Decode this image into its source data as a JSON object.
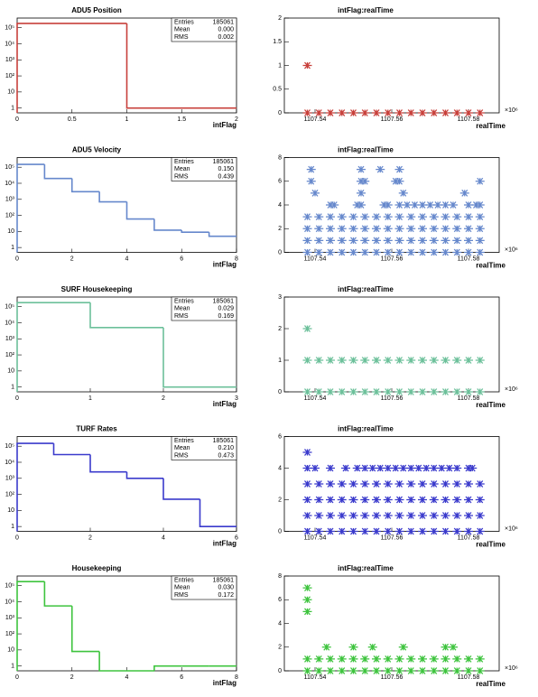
{
  "chart_data": [
    {
      "type": "histogram",
      "title": "ADU5 Position",
      "xlabel": "intFlag",
      "color": "#c8403b",
      "log_y": true,
      "bins": [
        0,
        1,
        2
      ],
      "counts": [
        185060,
        1
      ],
      "xlim": [
        0,
        2
      ],
      "xticks": [
        0,
        0.5,
        1,
        1.5,
        2
      ],
      "ylim": [
        0.5,
        400000
      ],
      "yticks": [
        1,
        10,
        {
          "value": 100,
          "label": "10²"
        },
        {
          "value": 1000,
          "label": "10³"
        },
        {
          "value": 10000,
          "label": "10⁴"
        },
        {
          "value": 100000,
          "label": "10⁵"
        }
      ],
      "stats": [
        {
          "label": "Entries",
          "value": "185061"
        },
        {
          "label": "Mean",
          "value": "0.000"
        },
        {
          "label": "RMS",
          "value": "0.002"
        }
      ]
    },
    {
      "type": "scatter",
      "title": "intFlag:realTime",
      "xlabel": "realTime",
      "color": "#c8403b",
      "xlim": [
        1107.532,
        1107.588
      ],
      "xticks": [
        {
          "value": 1107.54,
          "label": "1107.54"
        },
        {
          "value": 1107.56,
          "label": "1107.56"
        },
        {
          "value": 1107.58,
          "label": "1107.58"
        }
      ],
      "x_exponent": "×10⁶",
      "ylim": [
        0,
        2
      ],
      "yticks": [
        0,
        0.5,
        1,
        1.5,
        2
      ],
      "rows": [
        {
          "y": 0,
          "x": [
            1107.538,
            1107.541,
            1107.544,
            1107.547,
            1107.55,
            1107.553,
            1107.556,
            1107.559,
            1107.562,
            1107.565,
            1107.568,
            1107.571,
            1107.574,
            1107.577,
            1107.58,
            1107.583
          ]
        },
        {
          "y": 1,
          "x": [
            1107.538
          ]
        }
      ]
    },
    {
      "type": "histogram",
      "title": "ADU5 Velocity",
      "xlabel": "intFlag",
      "color": "#6688cc",
      "log_y": true,
      "bins": [
        0,
        1,
        2,
        3,
        4,
        5,
        6,
        7,
        8
      ],
      "counts": [
        150000,
        20000,
        3000,
        700,
        60,
        12,
        9,
        5
      ],
      "xlim": [
        0,
        8
      ],
      "xticks": [
        0,
        2,
        4,
        6,
        8
      ],
      "ylim": [
        0.5,
        400000
      ],
      "yticks": [
        1,
        10,
        {
          "value": 100,
          "label": "10²"
        },
        {
          "value": 1000,
          "label": "10³"
        },
        {
          "value": 10000,
          "label": "10⁴"
        },
        {
          "value": 100000,
          "label": "10⁵"
        }
      ],
      "stats": [
        {
          "label": "Entries",
          "value": "185061"
        },
        {
          "label": "Mean",
          "value": "0.150"
        },
        {
          "label": "RMS",
          "value": "0.439"
        }
      ]
    },
    {
      "type": "scatter",
      "title": "intFlag:realTime",
      "xlabel": "realTime",
      "color": "#6688cc",
      "xlim": [
        1107.532,
        1107.588
      ],
      "xticks": [
        {
          "value": 1107.54,
          "label": "1107.54"
        },
        {
          "value": 1107.56,
          "label": "1107.56"
        },
        {
          "value": 1107.58,
          "label": "1107.58"
        }
      ],
      "x_exponent": "×10⁶",
      "ylim": [
        0,
        8
      ],
      "yticks": [
        0,
        2,
        4,
        6,
        8
      ],
      "rows": [
        {
          "y": 0,
          "x": [
            1107.538,
            1107.541,
            1107.544,
            1107.547,
            1107.55,
            1107.553,
            1107.556,
            1107.559,
            1107.562,
            1107.565,
            1107.568,
            1107.571,
            1107.574,
            1107.577,
            1107.58,
            1107.583
          ]
        },
        {
          "y": 1,
          "x": [
            1107.538,
            1107.541,
            1107.544,
            1107.547,
            1107.55,
            1107.553,
            1107.556,
            1107.559,
            1107.562,
            1107.565,
            1107.568,
            1107.571,
            1107.574,
            1107.577,
            1107.58,
            1107.583
          ]
        },
        {
          "y": 2,
          "x": [
            1107.538,
            1107.541,
            1107.544,
            1107.547,
            1107.55,
            1107.553,
            1107.556,
            1107.559,
            1107.562,
            1107.565,
            1107.568,
            1107.571,
            1107.574,
            1107.577,
            1107.58,
            1107.583
          ]
        },
        {
          "y": 3,
          "x": [
            1107.538,
            1107.541,
            1107.544,
            1107.547,
            1107.55,
            1107.553,
            1107.556,
            1107.559,
            1107.562,
            1107.565,
            1107.568,
            1107.571,
            1107.574,
            1107.577,
            1107.58,
            1107.583
          ]
        },
        {
          "y": 4,
          "x": [
            1107.544,
            1107.545,
            1107.551,
            1107.552,
            1107.558,
            1107.559,
            1107.562,
            1107.564,
            1107.566,
            1107.568,
            1107.57,
            1107.572,
            1107.574,
            1107.576,
            1107.58,
            1107.582,
            1107.583
          ]
        },
        {
          "y": 5,
          "x": [
            1107.54,
            1107.552,
            1107.563,
            1107.579
          ]
        },
        {
          "y": 6,
          "x": [
            1107.539,
            1107.552,
            1107.553,
            1107.561,
            1107.562,
            1107.583
          ]
        },
        {
          "y": 7,
          "x": [
            1107.539,
            1107.552,
            1107.557,
            1107.562
          ]
        }
      ]
    },
    {
      "type": "histogram",
      "title": "SURF Housekeeping",
      "xlabel": "intFlag",
      "color": "#6cc09a",
      "log_y": true,
      "bins": [
        0,
        1,
        2,
        3
      ],
      "counts": [
        180000,
        5000,
        1
      ],
      "xlim": [
        0,
        3
      ],
      "xticks": [
        0,
        1,
        2,
        3
      ],
      "ylim": [
        0.5,
        400000
      ],
      "yticks": [
        1,
        10,
        {
          "value": 100,
          "label": "10²"
        },
        {
          "value": 1000,
          "label": "10³"
        },
        {
          "value": 10000,
          "label": "10⁴"
        },
        {
          "value": 100000,
          "label": "10⁵"
        }
      ],
      "stats": [
        {
          "label": "Entries",
          "value": "185061"
        },
        {
          "label": "Mean",
          "value": "0.029"
        },
        {
          "label": "RMS",
          "value": "0.169"
        }
      ]
    },
    {
      "type": "scatter",
      "title": "intFlag:realTime",
      "xlabel": "realTime",
      "color": "#6cc09a",
      "xlim": [
        1107.532,
        1107.588
      ],
      "xticks": [
        {
          "value": 1107.54,
          "label": "1107.54"
        },
        {
          "value": 1107.56,
          "label": "1107.56"
        },
        {
          "value": 1107.58,
          "label": "1107.58"
        }
      ],
      "x_exponent": "×10⁶",
      "ylim": [
        0,
        3
      ],
      "yticks": [
        0,
        1,
        2,
        3
      ],
      "rows": [
        {
          "y": 0,
          "x": [
            1107.538,
            1107.541,
            1107.544,
            1107.547,
            1107.55,
            1107.553,
            1107.556,
            1107.559,
            1107.562,
            1107.565,
            1107.568,
            1107.571,
            1107.574,
            1107.577,
            1107.58,
            1107.583
          ]
        },
        {
          "y": 1,
          "x": [
            1107.538,
            1107.541,
            1107.544,
            1107.547,
            1107.55,
            1107.553,
            1107.556,
            1107.559,
            1107.562,
            1107.565,
            1107.568,
            1107.571,
            1107.574,
            1107.577,
            1107.58,
            1107.583
          ]
        },
        {
          "y": 2,
          "x": [
            1107.538
          ]
        }
      ]
    },
    {
      "type": "histogram",
      "title": "TURF Rates",
      "xlabel": "intFlag",
      "color": "#3a3acc",
      "log_y": true,
      "bins": [
        0,
        1,
        2,
        3,
        4,
        5,
        6
      ],
      "counts": [
        150000,
        30000,
        2500,
        1000,
        50,
        1
      ],
      "xlim": [
        0,
        6
      ],
      "xticks": [
        0,
        2,
        4,
        6
      ],
      "ylim": [
        0.5,
        400000
      ],
      "yticks": [
        1,
        10,
        {
          "value": 100,
          "label": "10²"
        },
        {
          "value": 1000,
          "label": "10³"
        },
        {
          "value": 10000,
          "label": "10⁴"
        },
        {
          "value": 100000,
          "label": "10⁵"
        }
      ],
      "stats": [
        {
          "label": "Entries",
          "value": "185061"
        },
        {
          "label": "Mean",
          "value": "0.210"
        },
        {
          "label": "RMS",
          "value": "0.473"
        }
      ]
    },
    {
      "type": "scatter",
      "title": "intFlag:realTime",
      "xlabel": "realTime",
      "color": "#3a3acc",
      "xlim": [
        1107.532,
        1107.588
      ],
      "xticks": [
        {
          "value": 1107.54,
          "label": "1107.54"
        },
        {
          "value": 1107.56,
          "label": "1107.56"
        },
        {
          "value": 1107.58,
          "label": "1107.58"
        }
      ],
      "x_exponent": "×10⁶",
      "ylim": [
        0,
        6
      ],
      "yticks": [
        0,
        2,
        4,
        6
      ],
      "rows": [
        {
          "y": 0,
          "x": [
            1107.538,
            1107.541,
            1107.544,
            1107.547,
            1107.55,
            1107.553,
            1107.556,
            1107.559,
            1107.562,
            1107.565,
            1107.568,
            1107.571,
            1107.574,
            1107.577,
            1107.58,
            1107.583
          ]
        },
        {
          "y": 1,
          "x": [
            1107.538,
            1107.541,
            1107.544,
            1107.547,
            1107.55,
            1107.553,
            1107.556,
            1107.559,
            1107.562,
            1107.565,
            1107.568,
            1107.571,
            1107.574,
            1107.577,
            1107.58,
            1107.583
          ]
        },
        {
          "y": 2,
          "x": [
            1107.538,
            1107.541,
            1107.544,
            1107.547,
            1107.55,
            1107.553,
            1107.556,
            1107.559,
            1107.562,
            1107.565,
            1107.568,
            1107.571,
            1107.574,
            1107.577,
            1107.58,
            1107.583
          ]
        },
        {
          "y": 3,
          "x": [
            1107.538,
            1107.541,
            1107.544,
            1107.547,
            1107.55,
            1107.553,
            1107.556,
            1107.559,
            1107.562,
            1107.565,
            1107.568,
            1107.571,
            1107.574,
            1107.577,
            1107.58,
            1107.583
          ]
        },
        {
          "y": 4,
          "x": [
            1107.538,
            1107.54,
            1107.544,
            1107.548,
            1107.551,
            1107.553,
            1107.555,
            1107.557,
            1107.559,
            1107.561,
            1107.563,
            1107.565,
            1107.567,
            1107.569,
            1107.571,
            1107.573,
            1107.575,
            1107.577,
            1107.58,
            1107.581
          ]
        },
        {
          "y": 5,
          "x": [
            1107.538
          ]
        }
      ]
    },
    {
      "type": "histogram",
      "title": "Housekeeping",
      "xlabel": "intFlag",
      "color": "#3ec43e",
      "log_y": true,
      "bins": [
        0,
        1,
        2,
        3,
        4,
        5,
        6,
        7,
        8
      ],
      "counts": [
        180000,
        5500,
        8,
        0,
        0,
        1,
        1,
        1
      ],
      "xlim": [
        0,
        8
      ],
      "xticks": [
        0,
        2,
        4,
        6,
        8
      ],
      "ylim": [
        0.5,
        400000
      ],
      "yticks": [
        1,
        10,
        {
          "value": 100,
          "label": "10²"
        },
        {
          "value": 1000,
          "label": "10³"
        },
        {
          "value": 10000,
          "label": "10⁴"
        },
        {
          "value": 100000,
          "label": "10⁵"
        }
      ],
      "stats": [
        {
          "label": "Entries",
          "value": "185061"
        },
        {
          "label": "Mean",
          "value": "0.030"
        },
        {
          "label": "RMS",
          "value": "0.172"
        }
      ]
    },
    {
      "type": "scatter",
      "title": "intFlag:realTime",
      "xlabel": "realTime",
      "color": "#3ec43e",
      "xlim": [
        1107.532,
        1107.588
      ],
      "xticks": [
        {
          "value": 1107.54,
          "label": "1107.54"
        },
        {
          "value": 1107.56,
          "label": "1107.56"
        },
        {
          "value": 1107.58,
          "label": "1107.58"
        }
      ],
      "x_exponent": "×10⁶",
      "ylim": [
        0,
        8
      ],
      "yticks": [
        0,
        2,
        4,
        6,
        8
      ],
      "rows": [
        {
          "y": 0,
          "x": [
            1107.538,
            1107.541,
            1107.544,
            1107.547,
            1107.55,
            1107.553,
            1107.556,
            1107.559,
            1107.562,
            1107.565,
            1107.568,
            1107.571,
            1107.574,
            1107.577,
            1107.58,
            1107.583
          ]
        },
        {
          "y": 1,
          "x": [
            1107.538,
            1107.541,
            1107.544,
            1107.547,
            1107.55,
            1107.553,
            1107.556,
            1107.559,
            1107.562,
            1107.565,
            1107.568,
            1107.571,
            1107.574,
            1107.577,
            1107.58,
            1107.583
          ]
        },
        {
          "y": 2,
          "x": [
            1107.543,
            1107.55,
            1107.555,
            1107.563,
            1107.574,
            1107.576
          ]
        },
        {
          "y": 5,
          "x": [
            1107.538
          ]
        },
        {
          "y": 6,
          "x": [
            1107.538
          ]
        },
        {
          "y": 7,
          "x": [
            1107.538
          ]
        }
      ]
    }
  ]
}
